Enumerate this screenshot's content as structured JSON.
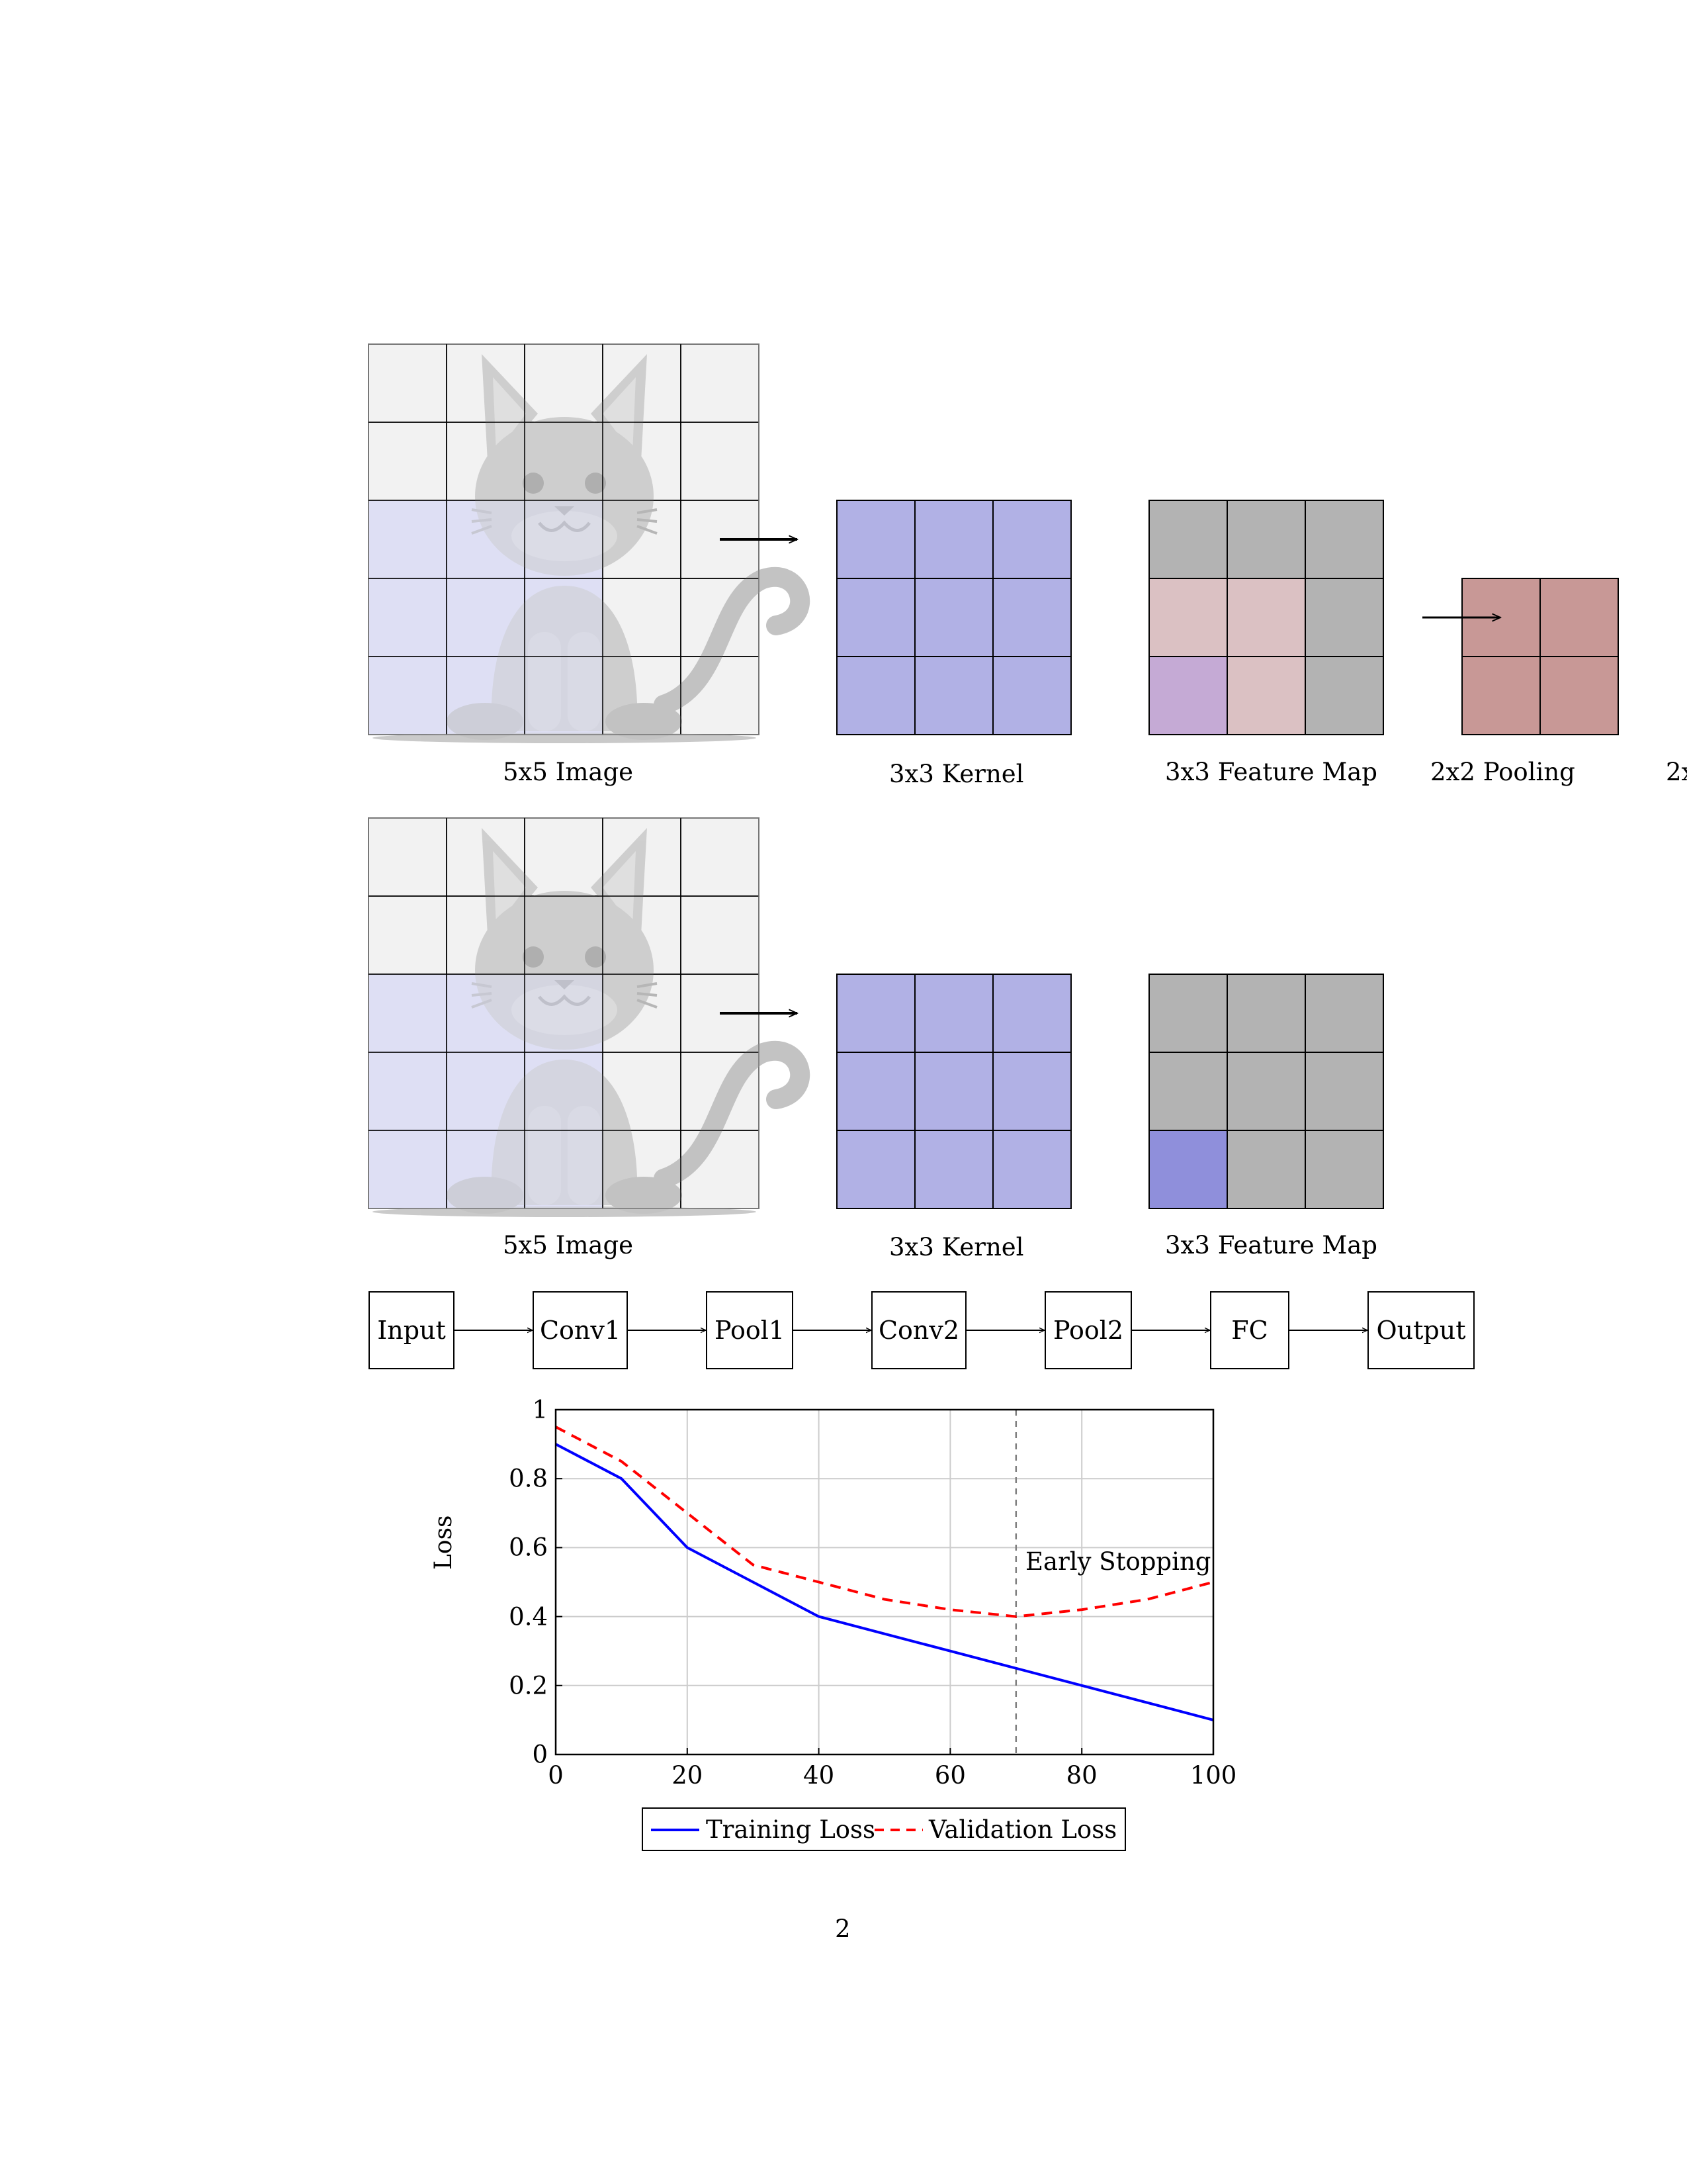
{
  "section_a": {
    "image_label": "5x5 Image",
    "kernel_label": "3x3 Kernel",
    "feature_map_label": "3x3 Feature Map",
    "pooling_label": "2x2 Pooling",
    "clipped_label": "2x"
  },
  "section_b": {
    "image_label": "5x5 Image",
    "kernel_label": "3x3 Kernel",
    "feature_map_label": "3x3 Feature Map"
  },
  "pipeline": {
    "stages": [
      "Input",
      "Conv1",
      "Pool1",
      "Conv2",
      "Pool2",
      "FC",
      "Output"
    ]
  },
  "colors": {
    "image_cell": "#f2f2f2",
    "image_highlight": "#dedff5",
    "kernel": "#b1b1e5",
    "feature_gray": "#b3b3b3",
    "feature_pink": "#dbc1c3",
    "feature_purple": "#c5aad5",
    "feature_blue": "#8f8fdb",
    "pool": "#c89896",
    "training_line": "#0000ff",
    "validation_line": "#ff0000",
    "grid": "#cccccc"
  },
  "chart_data": {
    "type": "line",
    "title": "",
    "xlabel": "",
    "ylabel": "Loss",
    "xlim": [
      0,
      100
    ],
    "ylim": [
      0,
      1
    ],
    "xticks": [
      0,
      20,
      40,
      60,
      80,
      100
    ],
    "yticks": [
      0,
      0.2,
      0.4,
      0.6,
      0.8,
      1
    ],
    "xtick_labels": [
      "0",
      "20",
      "40",
      "60",
      "80",
      "100"
    ],
    "ytick_labels": [
      "0",
      "0.2",
      "0.4",
      "0.6",
      "0.8",
      "1"
    ],
    "grid": true,
    "legend_position": "bottom-center",
    "series": [
      {
        "name": "Training Loss",
        "style": "solid",
        "x": [
          0,
          10,
          20,
          30,
          40,
          50,
          60,
          70,
          80,
          90,
          100
        ],
        "y": [
          0.9,
          0.8,
          0.6,
          0.5,
          0.4,
          0.35,
          0.3,
          0.25,
          0.2,
          0.15,
          0.1
        ]
      },
      {
        "name": "Validation Loss",
        "style": "dashed",
        "x": [
          0,
          10,
          20,
          30,
          40,
          50,
          60,
          70,
          80,
          90,
          100
        ],
        "y": [
          0.95,
          0.85,
          0.7,
          0.55,
          0.5,
          0.45,
          0.42,
          0.4,
          0.42,
          0.45,
          0.5
        ]
      }
    ],
    "annotations": [
      {
        "text": "Early Stopping",
        "x": 70
      }
    ]
  },
  "page_number": "2"
}
